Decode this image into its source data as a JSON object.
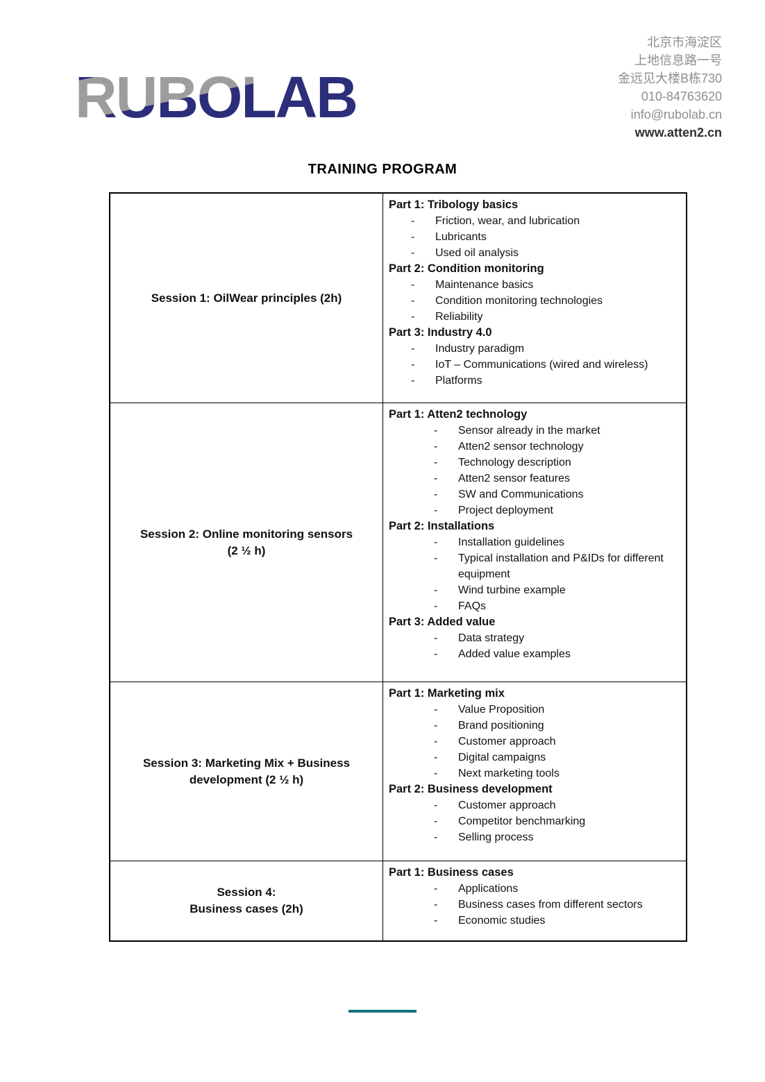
{
  "brand": {
    "logo_text": "RUBOLAB"
  },
  "contact": {
    "lines": [
      "北京市海淀区",
      "上地信息路一号",
      "金远见大楼B栋730",
      "010-84763620",
      "info@rubolab.cn"
    ],
    "website": "www.atten2.cn"
  },
  "title": "TRAINING PROGRAM",
  "table": {
    "rows": [
      {
        "session_lines": [
          "Session 1: OilWear principles (2h)"
        ],
        "parts": [
          {
            "heading": "Part 1: Tribology basics",
            "items": [
              "Friction, wear, and lubrication",
              "Lubricants",
              "Used oil analysis"
            ]
          },
          {
            "heading": "Part 2: Condition monitoring",
            "items": [
              "Maintenance basics",
              "Condition monitoring technologies",
              "Reliability"
            ]
          },
          {
            "heading": "Part 3: Industry 4.0",
            "items": [
              "Industry paradigm",
              "IoT – Communications (wired and wireless)",
              "Platforms"
            ]
          }
        ]
      },
      {
        "session_lines": [
          "Session 2: Online monitoring sensors",
          "(2 ½ h)"
        ],
        "parts": [
          {
            "heading": "Part 1: Atten2 technology",
            "items": [
              "Sensor already in the market",
              "Atten2 sensor technology",
              "Technology description",
              "Atten2 sensor features",
              "SW and Communications",
              "Project deployment"
            ]
          },
          {
            "heading": "Part 2: Installations",
            "items": [
              "Installation guidelines",
              "Typical installation and P&IDs for different equipment",
              "Wind turbine example",
              "FAQs"
            ]
          },
          {
            "heading": "Part 3: Added value",
            "items": [
              "Data strategy",
              "Added value examples"
            ]
          }
        ]
      },
      {
        "session_lines": [
          "Session 3: Marketing Mix + Business",
          "development (2 ½ h)"
        ],
        "parts": [
          {
            "heading": "Part 1: Marketing mix",
            "items": [
              "Value Proposition",
              "Brand positioning",
              "Customer approach",
              "Digital campaigns",
              "Next marketing tools"
            ]
          },
          {
            "heading": "Part 2: Business development",
            "items": [
              "Customer approach",
              "Competitor benchmarking",
              "Selling process"
            ]
          }
        ]
      },
      {
        "session_lines": [
          "Session 4:",
          "Business cases (2h)"
        ],
        "parts": [
          {
            "heading": "Part 1: Business cases",
            "items": [
              "Applications",
              "Business cases from different sectors",
              "Economic studies"
            ]
          }
        ]
      }
    ]
  },
  "colors": {
    "logo_navy": "#2c2e7a",
    "logo_gray": "#9d9d9d",
    "contact_gray": "#8e8e8e",
    "accent_teal": "#16717f",
    "text": "#1a1a1a"
  }
}
